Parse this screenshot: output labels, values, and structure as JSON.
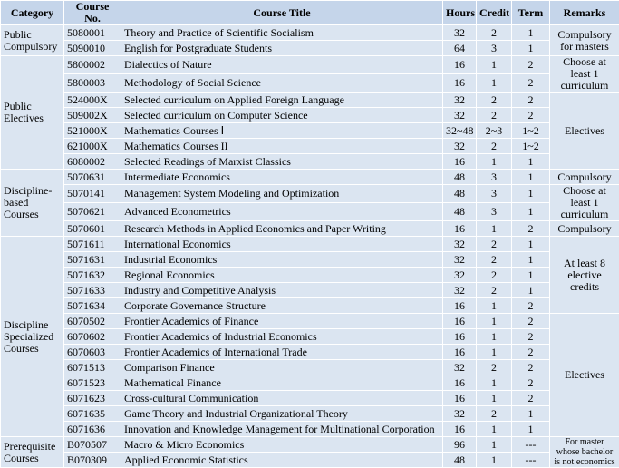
{
  "header": [
    "Category",
    "Course No.",
    "Course Title",
    "Hours",
    "Credit",
    "Term",
    "Remarks"
  ],
  "groups": [
    {
      "category": "Public Compulsory",
      "rows": [
        {
          "no": "5080001",
          "title": "Theory and Practice of Scientific Socialism",
          "hours": 32,
          "credit": 2,
          "term": 1,
          "remark": "Compulsory for masters"
        },
        {
          "no": "5090010",
          "title": "English for Postgraduate Students",
          "hours": 64,
          "credit": 3,
          "term": 1
        }
      ]
    },
    {
      "category": "Public Electives",
      "rows": [
        {
          "no": "5800002",
          "title": "Dialectics of Nature",
          "hours": 16,
          "credit": 1,
          "term": 2,
          "remark": "Choose at least 1 curriculum"
        },
        {
          "no": "5800003",
          "title": "Methodology of Social Science",
          "hours": 16,
          "credit": 1,
          "term": 2
        },
        {
          "no": "524000X",
          "title": "Selected curriculum on Applied Foreign Language",
          "hours": 32,
          "credit": 2,
          "term": 2,
          "remark": "Electives"
        },
        {
          "no": "509002X",
          "title": "Selected curriculum on Computer Science",
          "hours": 32,
          "credit": 2,
          "term": 2
        },
        {
          "no": "521000X",
          "title": "Mathematics Courses Ⅰ",
          "hours": "32~48",
          "credit": "2~3",
          "term": "1~2"
        },
        {
          "no": "621000X",
          "title": "Mathematics Courses II",
          "hours": 32,
          "credit": 2,
          "term": "1~2"
        },
        {
          "no": "6080002",
          "title": "Selected Readings of Marxist Classics",
          "hours": 16,
          "credit": 1,
          "term": 1
        }
      ]
    },
    {
      "category": "Discipline-based Courses",
      "rows": [
        {
          "no": "5070631",
          "title": "Intermediate Economics",
          "hours": 48,
          "credit": 3,
          "term": 1,
          "remark": "Compulsory"
        },
        {
          "no": "5070141",
          "title": "Management System Modeling and Optimization",
          "hours": 48,
          "credit": 3,
          "term": 1,
          "remark": "Choose at least 1 curriculum"
        },
        {
          "no": "5070621",
          "title": "Advanced Econometrics",
          "hours": 48,
          "credit": 3,
          "term": 1
        },
        {
          "no": "5070601",
          "title": "Research Methods in Applied Economics and Paper Writing",
          "hours": 16,
          "credit": 1,
          "term": 2,
          "remark": "Compulsory"
        }
      ]
    },
    {
      "category": "Discipline Specialized Courses",
      "rows": [
        {
          "no": "5071611",
          "title": "International Economics",
          "hours": 32,
          "credit": 2,
          "term": 1,
          "remark": "At least 8 elective credits"
        },
        {
          "no": "5071631",
          "title": "Industrial Economics",
          "hours": 32,
          "credit": 2,
          "term": 1
        },
        {
          "no": "5071632",
          "title": "Regional Economics",
          "hours": 32,
          "credit": 2,
          "term": 1
        },
        {
          "no": "5071633",
          "title": "Industry and Competitive Analysis",
          "hours": 32,
          "credit": 2,
          "term": 1
        },
        {
          "no": "5071634",
          "title": "Corporate Governance Structure",
          "hours": 16,
          "credit": 1,
          "term": 2
        },
        {
          "no": "6070502",
          "title": "Frontier Academics  of Finance",
          "hours": 16,
          "credit": 1,
          "term": 2,
          "remark": "Electives"
        },
        {
          "no": "6070602",
          "title": "Frontier Academics  of Industrial Economics",
          "hours": 16,
          "credit": 1,
          "term": 2
        },
        {
          "no": "6070603",
          "title": "Frontier Academics  of International Trade",
          "hours": 16,
          "credit": 1,
          "term": 2
        },
        {
          "no": "6071513",
          "title": "Comparison Finance",
          "hours": 32,
          "credit": 2,
          "term": 2
        },
        {
          "no": "6071523",
          "title": "Mathematical Finance",
          "hours": 16,
          "credit": 1,
          "term": 2
        },
        {
          "no": "6071623",
          "title": "Cross-cultural Communication",
          "hours": 16,
          "credit": 1,
          "term": 2
        },
        {
          "no": "6071635",
          "title": "Game Theory and Industrial Organizational Theory",
          "hours": 32,
          "credit": 2,
          "term": 1
        },
        {
          "no": "6071636",
          "title": "Innovation and Knowledge Management for Multinational Corporation",
          "hours": 16,
          "credit": 1,
          "term": 1
        }
      ]
    },
    {
      "category": "Prerequisite Courses",
      "rows": [
        {
          "no": "B070507",
          "title": "Macro & Micro Economics",
          "hours": 96,
          "credit": 1,
          "term": "---",
          "remark": "For master whose bachelor is not economics"
        },
        {
          "no": "B070309",
          "title": "Applied Economic Statistics",
          "hours": 48,
          "credit": 1,
          "term": "---"
        }
      ]
    }
  ]
}
